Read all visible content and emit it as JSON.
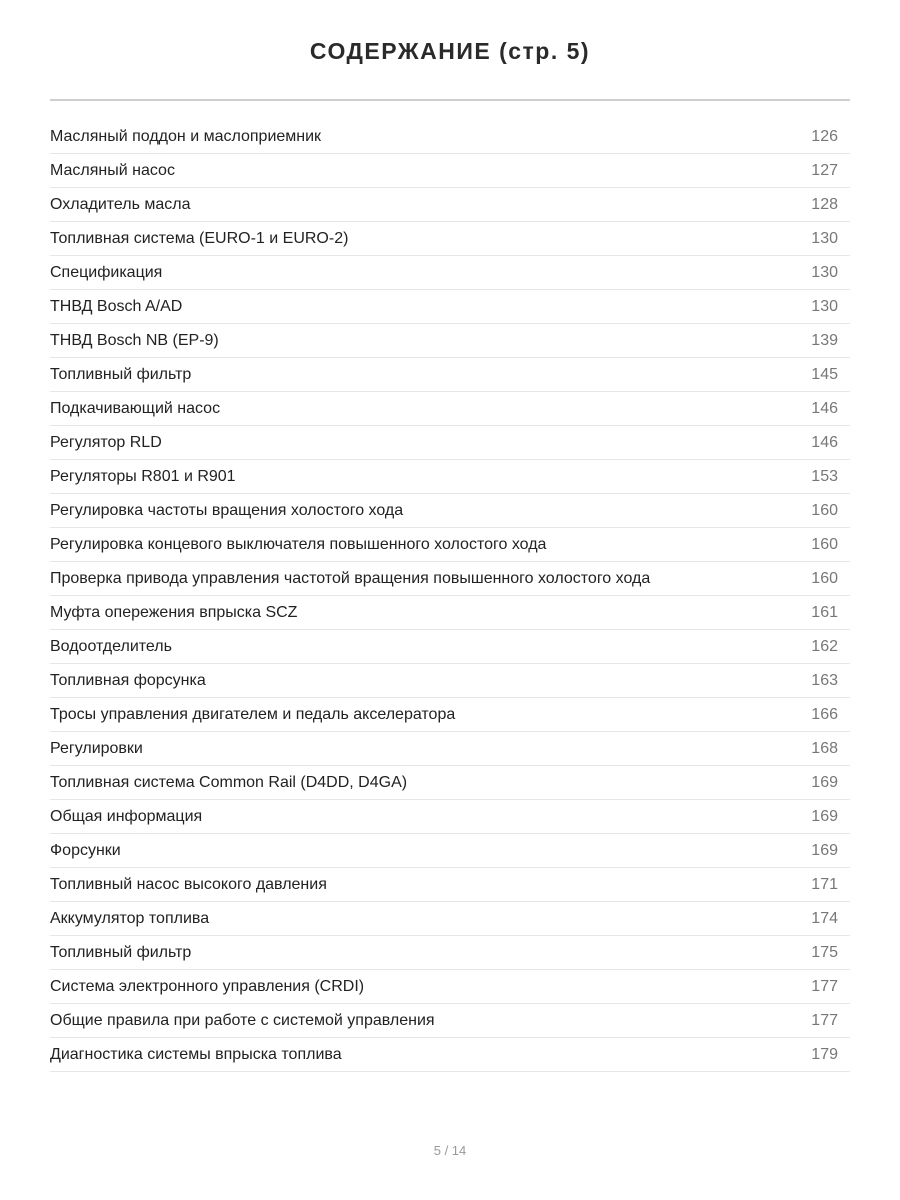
{
  "title": "СОДЕРЖАНИЕ (стр. 5)",
  "entries": [
    {
      "label": "Масляный поддон и маслоприемник",
      "page": "126"
    },
    {
      "label": "Масляный насос",
      "page": "127"
    },
    {
      "label": "Охладитель масла",
      "page": "128"
    },
    {
      "label": "Топливная система (EURO-1 и EURO-2)",
      "page": "130"
    },
    {
      "label": "Спецификация",
      "page": "130"
    },
    {
      "label": "ТНВД Bosch A/AD",
      "page": "130"
    },
    {
      "label": "ТНВД Bosch NB (EP-9)",
      "page": "139"
    },
    {
      "label": "Топливный фильтр",
      "page": "145"
    },
    {
      "label": "Подкачивающий насос",
      "page": "146"
    },
    {
      "label": "Регулятор RLD",
      "page": "146"
    },
    {
      "label": "Регуляторы R801 и R901",
      "page": "153"
    },
    {
      "label": "Регулировка частоты вращения холостого хода",
      "page": "160"
    },
    {
      "label": "Регулировка концевого выключателя повышенного холостого хода",
      "page": "160"
    },
    {
      "label": "Проверка привода управления частотой вращения повышенного холостого хода",
      "page": "160"
    },
    {
      "label": "Муфта опережения впрыска SCZ",
      "page": "161"
    },
    {
      "label": "Водоотделитель",
      "page": "162"
    },
    {
      "label": "Топливная форсунка",
      "page": "163"
    },
    {
      "label": "Тросы управления двигателем и педаль акселератора",
      "page": "166"
    },
    {
      "label": "Регулировки",
      "page": "168"
    },
    {
      "label": "Топливная система Common Rail (D4DD, D4GA)",
      "page": "169"
    },
    {
      "label": "Общая информация",
      "page": "169"
    },
    {
      "label": "Форсунки",
      "page": "169"
    },
    {
      "label": "Топливный насос высокого давления",
      "page": "171"
    },
    {
      "label": "Аккумулятор топлива",
      "page": "174"
    },
    {
      "label": "Топливный фильтр",
      "page": "175"
    },
    {
      "label": "Система электронного управления (CRDI)",
      "page": "177"
    },
    {
      "label": "Общие правила при работе с системой управления",
      "page": "177"
    },
    {
      "label": "Диагностика системы впрыска топлива",
      "page": "179"
    }
  ],
  "footer": {
    "pagination": "5 / 14"
  }
}
